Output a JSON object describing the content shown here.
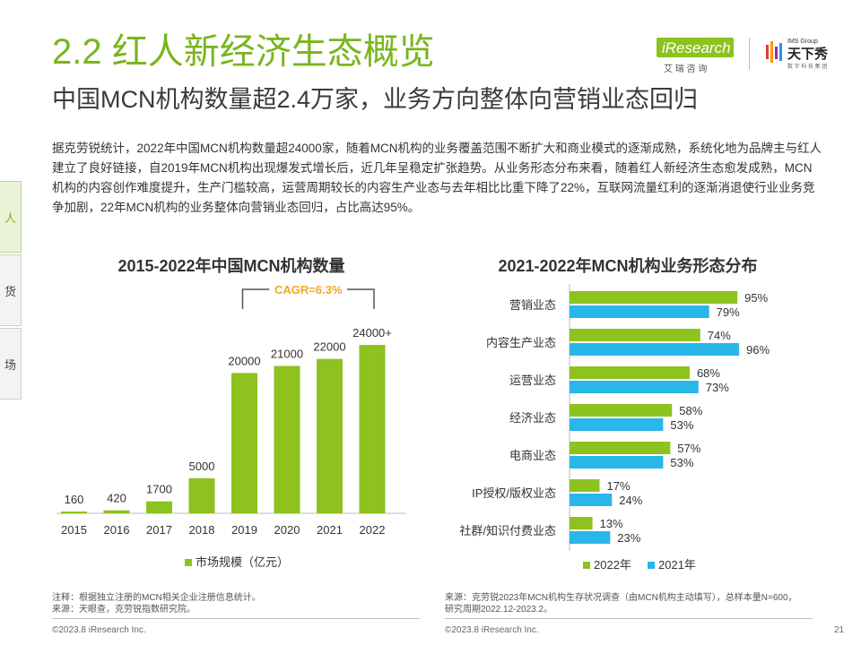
{
  "header": {
    "title": "2.2 红人新经济生态概览",
    "subtitle": "中国MCN机构数量超2.4万家，业务方向整体向营销业态回归",
    "logo_iresearch": "iResearch",
    "logo_iresearch_sub": "艾 瑞 咨 询",
    "logo_ims_group": "IMS Group",
    "logo_ims_name": "天下秀",
    "logo_ims_sub": "数 字 科 技 集 团"
  },
  "body_text": "据克劳锐统计，2022年中国MCN机构数量超24000家，随着MCN机构的业务覆盖范围不断扩大和商业模式的逐渐成熟，系统化地为品牌主与红人建立了良好链接，自2019年MCN机构出现爆发式增长后，近几年呈稳定扩张趋势。从业务形态分布来看，随着红人新经济生态愈发成熟，MCN机构的内容创作难度提升，生产门槛较高，运营周期较长的内容生产业态与去年相比比重下降了22%，互联网流量红利的逐渐消退使行业业务竞争加剧，22年MCN机构的业务整体向营销业态回归，占比高达95%。",
  "side_tabs": [
    "人",
    "货",
    "场"
  ],
  "chart_data": [
    {
      "type": "bar",
      "title": "2015-2022年中国MCN机构数量",
      "categories": [
        "2015",
        "2016",
        "2017",
        "2018",
        "2019",
        "2020",
        "2021",
        "2022"
      ],
      "values": [
        160,
        420,
        1700,
        5000,
        20000,
        21000,
        22000,
        24000
      ],
      "value_labels": [
        "160",
        "420",
        "1700",
        "5000",
        "20000",
        "21000",
        "22000",
        "24000+"
      ],
      "legend": [
        "市场规模（亿元）"
      ],
      "annotation": "CAGR=6.3%",
      "color": "#8dc21f",
      "annotation_color": "#f5a623",
      "ylim": [
        0,
        24000
      ]
    },
    {
      "type": "bar",
      "orientation": "horizontal",
      "title": "2021-2022年MCN机构业务形态分布",
      "categories": [
        "营销业态",
        "内容生产业态",
        "运营业态",
        "经济业态",
        "电商业态",
        "IP授权/版权业态",
        "社群/知识付费业态"
      ],
      "series": [
        {
          "name": "2022年",
          "values": [
            95,
            74,
            68,
            58,
            57,
            17,
            13
          ],
          "color": "#8dc21f"
        },
        {
          "name": "2021年",
          "values": [
            79,
            96,
            73,
            53,
            53,
            24,
            23
          ],
          "color": "#29b6e8"
        }
      ],
      "value_suffix": "%",
      "xlim": [
        0,
        100
      ]
    }
  ],
  "notes": {
    "left": "注释：根据独立注册的MCN相关企业注册信息统计。\n来源：天眼查，克劳锐指数研究院。",
    "right": "来源：克劳锐2023年MCN机构生存状况调查（由MCN机构主动填写），总样本量N=600，研究周期2022.12-2023.2。"
  },
  "footer": {
    "copyright_left": "©2023.8 iResearch Inc.",
    "copyright_right": "©2023.8 iResearch Inc.",
    "page_number": "21"
  }
}
